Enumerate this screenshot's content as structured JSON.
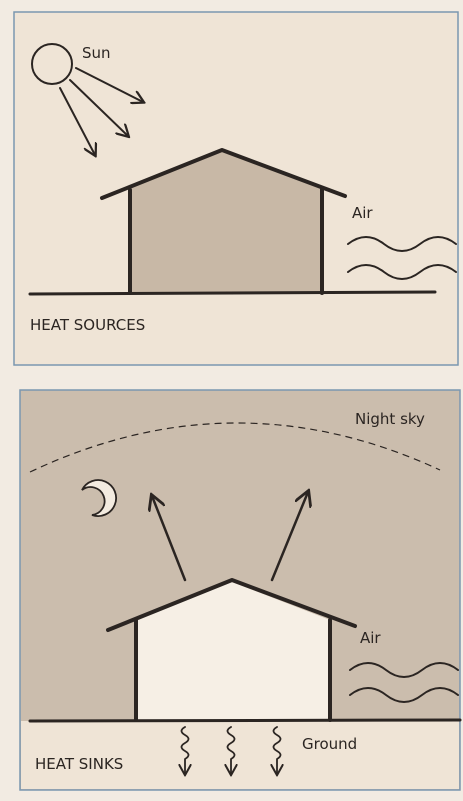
{
  "panels": [
    {
      "title": "HEAT SOURCES",
      "labels": [
        "Sun",
        "Air"
      ]
    },
    {
      "title": "HEAT SINKS",
      "labels": [
        "Night sky",
        "Air",
        "Ground"
      ]
    }
  ]
}
